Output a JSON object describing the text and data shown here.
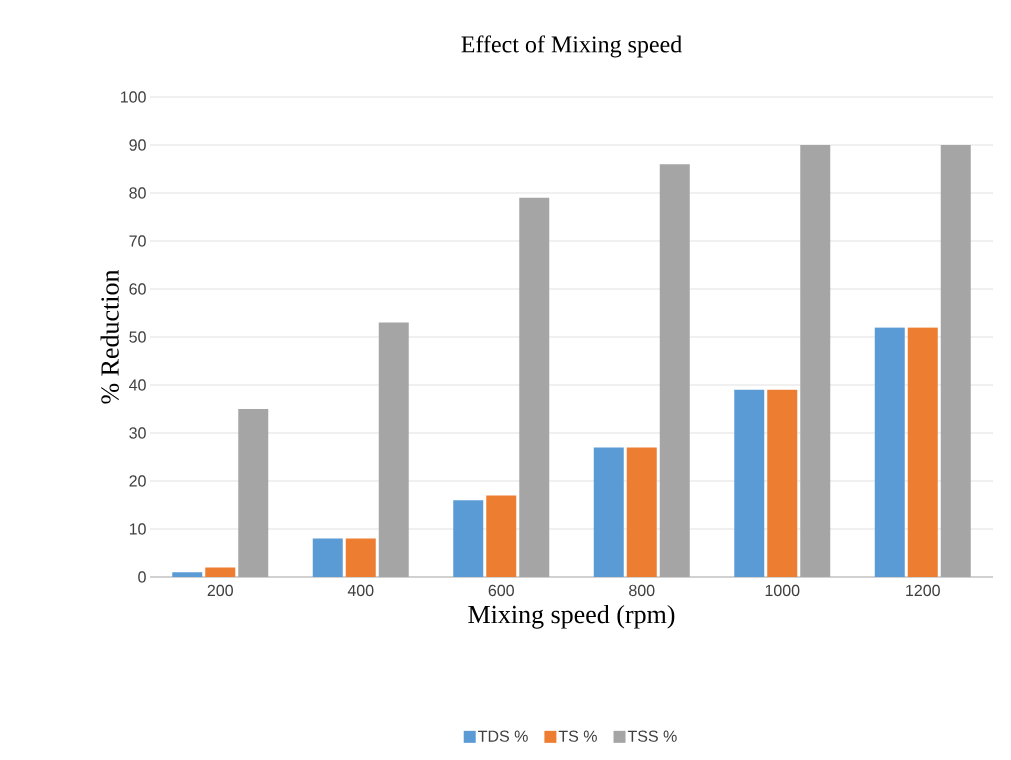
{
  "chart_data": {
    "type": "bar",
    "title": "Effect  of Mixing  speed",
    "xlabel": "Mixing  speed (rpm)",
    "ylabel": "% Reduction",
    "categories": [
      "200",
      "400",
      "600",
      "800",
      "1000",
      "1200"
    ],
    "series": [
      {
        "name": "TDS %",
        "color": "#5b9bd5",
        "values": [
          1,
          8,
          16,
          27,
          39,
          52
        ]
      },
      {
        "name": "TS %",
        "color": "#ed7d31",
        "values": [
          2,
          8,
          17,
          27,
          39,
          52
        ]
      },
      {
        "name": "TSS %",
        "color": "#a5a5a5",
        "values": [
          35,
          53,
          79,
          86,
          90,
          90
        ]
      }
    ],
    "ylim": [
      0,
      100
    ],
    "yticks": [
      0,
      10,
      20,
      30,
      40,
      50,
      60,
      70,
      80,
      90,
      100
    ],
    "grid": "y",
    "legend": "bottom"
  }
}
